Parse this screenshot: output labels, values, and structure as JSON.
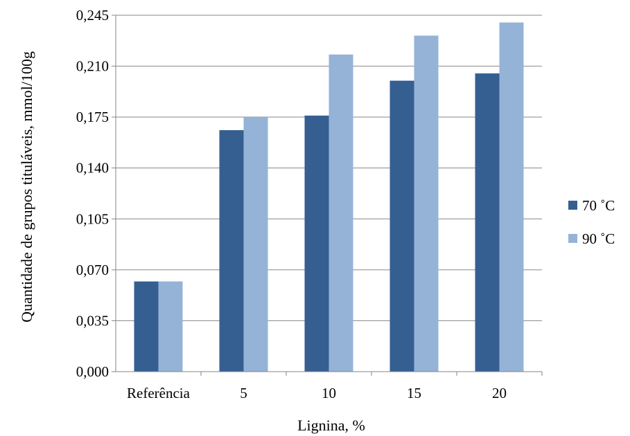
{
  "chart_data": {
    "type": "bar",
    "title": "",
    "xlabel": "Lignina, %",
    "ylabel": "Quantidade de grupos tituláveis, mmol/100g",
    "categories": [
      "Referência",
      "5",
      "10",
      "15",
      "20"
    ],
    "series": [
      {
        "name": "70 ˚C",
        "color": "#355F91",
        "values": [
          0.062,
          0.166,
          0.176,
          0.2,
          0.205
        ]
      },
      {
        "name": "90 ˚C",
        "color": "#95B3D7",
        "values": [
          0.062,
          0.175,
          0.218,
          0.231,
          0.24
        ]
      }
    ],
    "ylim": [
      0,
      0.245
    ],
    "yticks": [
      0,
      0.035,
      0.07,
      0.105,
      0.14,
      0.175,
      0.21,
      0.245
    ],
    "ytick_labels": [
      "0,000",
      "0,035",
      "0,070",
      "0,105",
      "0,140",
      "0,175",
      "0,210",
      "0,245"
    ],
    "grid": true,
    "legend_position": "right"
  }
}
